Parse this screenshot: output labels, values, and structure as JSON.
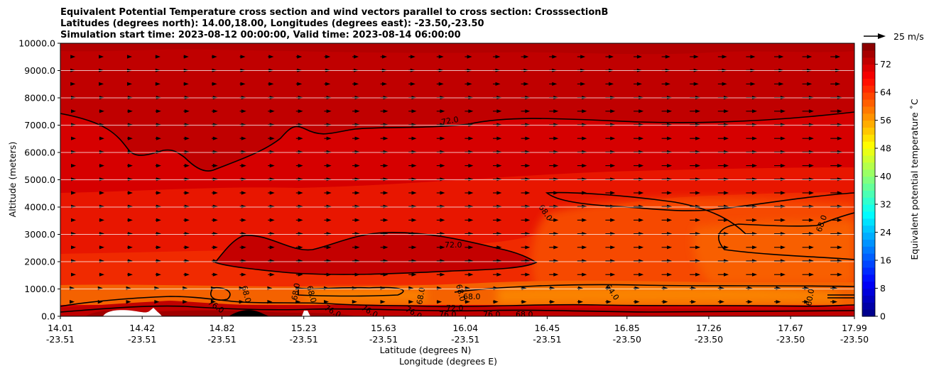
{
  "chart_data": {
    "type": "heatmap",
    "title_lines": [
      "Equivalent Potential Temperature cross section and wind vectors parallel to cross section: CrosssectionB",
      "Latitudes (degrees north): 14.00,18.00, Longitudes (degrees east): -23.50,-23.50",
      "Simulation start time: 2023-08-12 00:00:00, Valid time: 2023-08-14 06:00:00"
    ],
    "ylabel": "Altitude (meters)",
    "xlabel_lat": "Latitude (degrees N)",
    "xlabel_lon": "Longitude (degrees E)",
    "ylim": [
      0,
      10000
    ],
    "xlim": [
      14.01,
      17.99
    ],
    "y_ticks": [
      "0.0",
      "1000.0",
      "2000.0",
      "3000.0",
      "4000.0",
      "5000.0",
      "6000.0",
      "7000.0",
      "8000.0",
      "9000.0",
      "10000.0"
    ],
    "x_ticks": [
      {
        "lat": "14.01",
        "lon": "-23.51"
      },
      {
        "lat": "14.42",
        "lon": "-23.51"
      },
      {
        "lat": "14.82",
        "lon": "-23.51"
      },
      {
        "lat": "15.23",
        "lon": "-23.51"
      },
      {
        "lat": "15.63",
        "lon": "-23.51"
      },
      {
        "lat": "16.04",
        "lon": "-23.51"
      },
      {
        "lat": "16.45",
        "lon": "-23.51"
      },
      {
        "lat": "16.85",
        "lon": "-23.50"
      },
      {
        "lat": "17.26",
        "lon": "-23.50"
      },
      {
        "lat": "17.67",
        "lon": "-23.50"
      },
      {
        "lat": "17.99",
        "lon": "-23.50"
      }
    ],
    "grid": "horizontal",
    "colorbar": {
      "label": "Equivalent potential temperature $^\\circ$C",
      "label_display": "Equivalent potential temperature ˚C",
      "ticks": [
        "0",
        "8",
        "16",
        "24",
        "32",
        "40",
        "48",
        "56",
        "64",
        "72"
      ],
      "range": [
        0,
        78
      ],
      "colormap": "jet"
    },
    "quiver_key": {
      "label": "25 m/s"
    },
    "contour_labels": [
      "72.0",
      "72.0",
      "68.0",
      "68.0",
      "68.0",
      "68.0",
      "68.0",
      "68.0",
      "68.0",
      "64.0",
      "60.0",
      "76.0",
      "76.0",
      "76.0",
      "76.0",
      "76.0",
      "76.0",
      "72.0",
      "68.0",
      "68.0"
    ],
    "field_regions": [
      {
        "level": 74,
        "zmin": 6700,
        "zmax": 10000,
        "note": "upper dark red layer"
      },
      {
        "level": 70,
        "zmin": 4600,
        "zmax": 7000
      },
      {
        "level": 66,
        "zmin": 1500,
        "zmax": 4500,
        "note": "mid layer, lower values to the north"
      },
      {
        "level": 61,
        "zmin": 500,
        "zmax": 1200,
        "xmin": 15.3,
        "note": "near-surface minimum"
      },
      {
        "level": 76,
        "zmin": 0,
        "zmax": 400,
        "note": "surface maximum"
      }
    ]
  }
}
